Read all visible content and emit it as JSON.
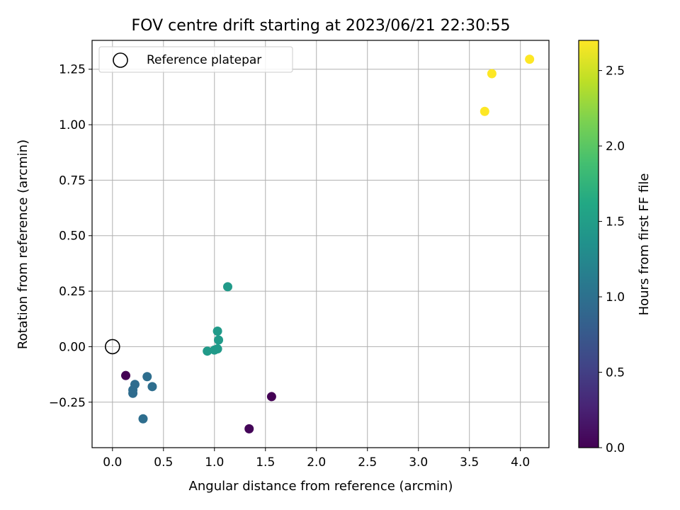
{
  "chart_data": {
    "type": "scatter",
    "title": "FOV centre drift starting at 2023/06/21 22:30:55",
    "xlabel": "Angular distance from reference (arcmin)",
    "ylabel": "Rotation from reference (arcmin)",
    "xlim": [
      -0.2,
      4.28
    ],
    "ylim": [
      -0.455,
      1.38
    ],
    "xticks": [
      0.0,
      0.5,
      1.0,
      1.5,
      2.0,
      2.5,
      3.0,
      3.5,
      4.0
    ],
    "xtick_labels": [
      "0.0",
      "0.5",
      "1.0",
      "1.5",
      "2.0",
      "2.5",
      "3.0",
      "3.5",
      "4.0"
    ],
    "yticks": [
      -0.25,
      0.0,
      0.25,
      0.5,
      0.75,
      1.0,
      1.25
    ],
    "ytick_labels": [
      "−0.25",
      "0.00",
      "0.25",
      "0.50",
      "0.75",
      "1.00",
      "1.25"
    ],
    "grid": true,
    "legend": {
      "position": "top-left",
      "entries": [
        {
          "label": "Reference platepar",
          "marker": "open-circle"
        }
      ]
    },
    "reference_point": {
      "x": 0.0,
      "y": 0.0
    },
    "colorbar": {
      "label": "Hours from first FF file",
      "colormap": "viridis",
      "range": [
        0.0,
        2.7
      ],
      "ticks": [
        0.0,
        0.5,
        1.0,
        1.5,
        2.0,
        2.5
      ],
      "tick_labels": [
        "0.0",
        "0.5",
        "1.0",
        "1.5",
        "2.0",
        "2.5"
      ]
    },
    "points": [
      {
        "x": 0.13,
        "y": -0.13,
        "hours": 0.0
      },
      {
        "x": 1.56,
        "y": -0.225,
        "hours": 0.0
      },
      {
        "x": 1.34,
        "y": -0.37,
        "hours": 0.03
      },
      {
        "x": 0.2,
        "y": -0.195,
        "hours": 0.95
      },
      {
        "x": 0.2,
        "y": -0.21,
        "hours": 0.95
      },
      {
        "x": 0.22,
        "y": -0.17,
        "hours": 0.95
      },
      {
        "x": 0.34,
        "y": -0.135,
        "hours": 0.97
      },
      {
        "x": 0.39,
        "y": -0.18,
        "hours": 0.97
      },
      {
        "x": 0.3,
        "y": -0.325,
        "hours": 0.97
      },
      {
        "x": 0.93,
        "y": -0.02,
        "hours": 1.45
      },
      {
        "x": 1.0,
        "y": -0.015,
        "hours": 1.45
      },
      {
        "x": 1.03,
        "y": -0.01,
        "hours": 1.45
      },
      {
        "x": 1.04,
        "y": 0.03,
        "hours": 1.45
      },
      {
        "x": 1.03,
        "y": 0.07,
        "hours": 1.45
      },
      {
        "x": 1.13,
        "y": 0.27,
        "hours": 1.45
      },
      {
        "x": 3.65,
        "y": 1.06,
        "hours": 2.7
      },
      {
        "x": 3.72,
        "y": 1.23,
        "hours": 2.7
      },
      {
        "x": 4.09,
        "y": 1.295,
        "hours": 2.7
      }
    ]
  }
}
